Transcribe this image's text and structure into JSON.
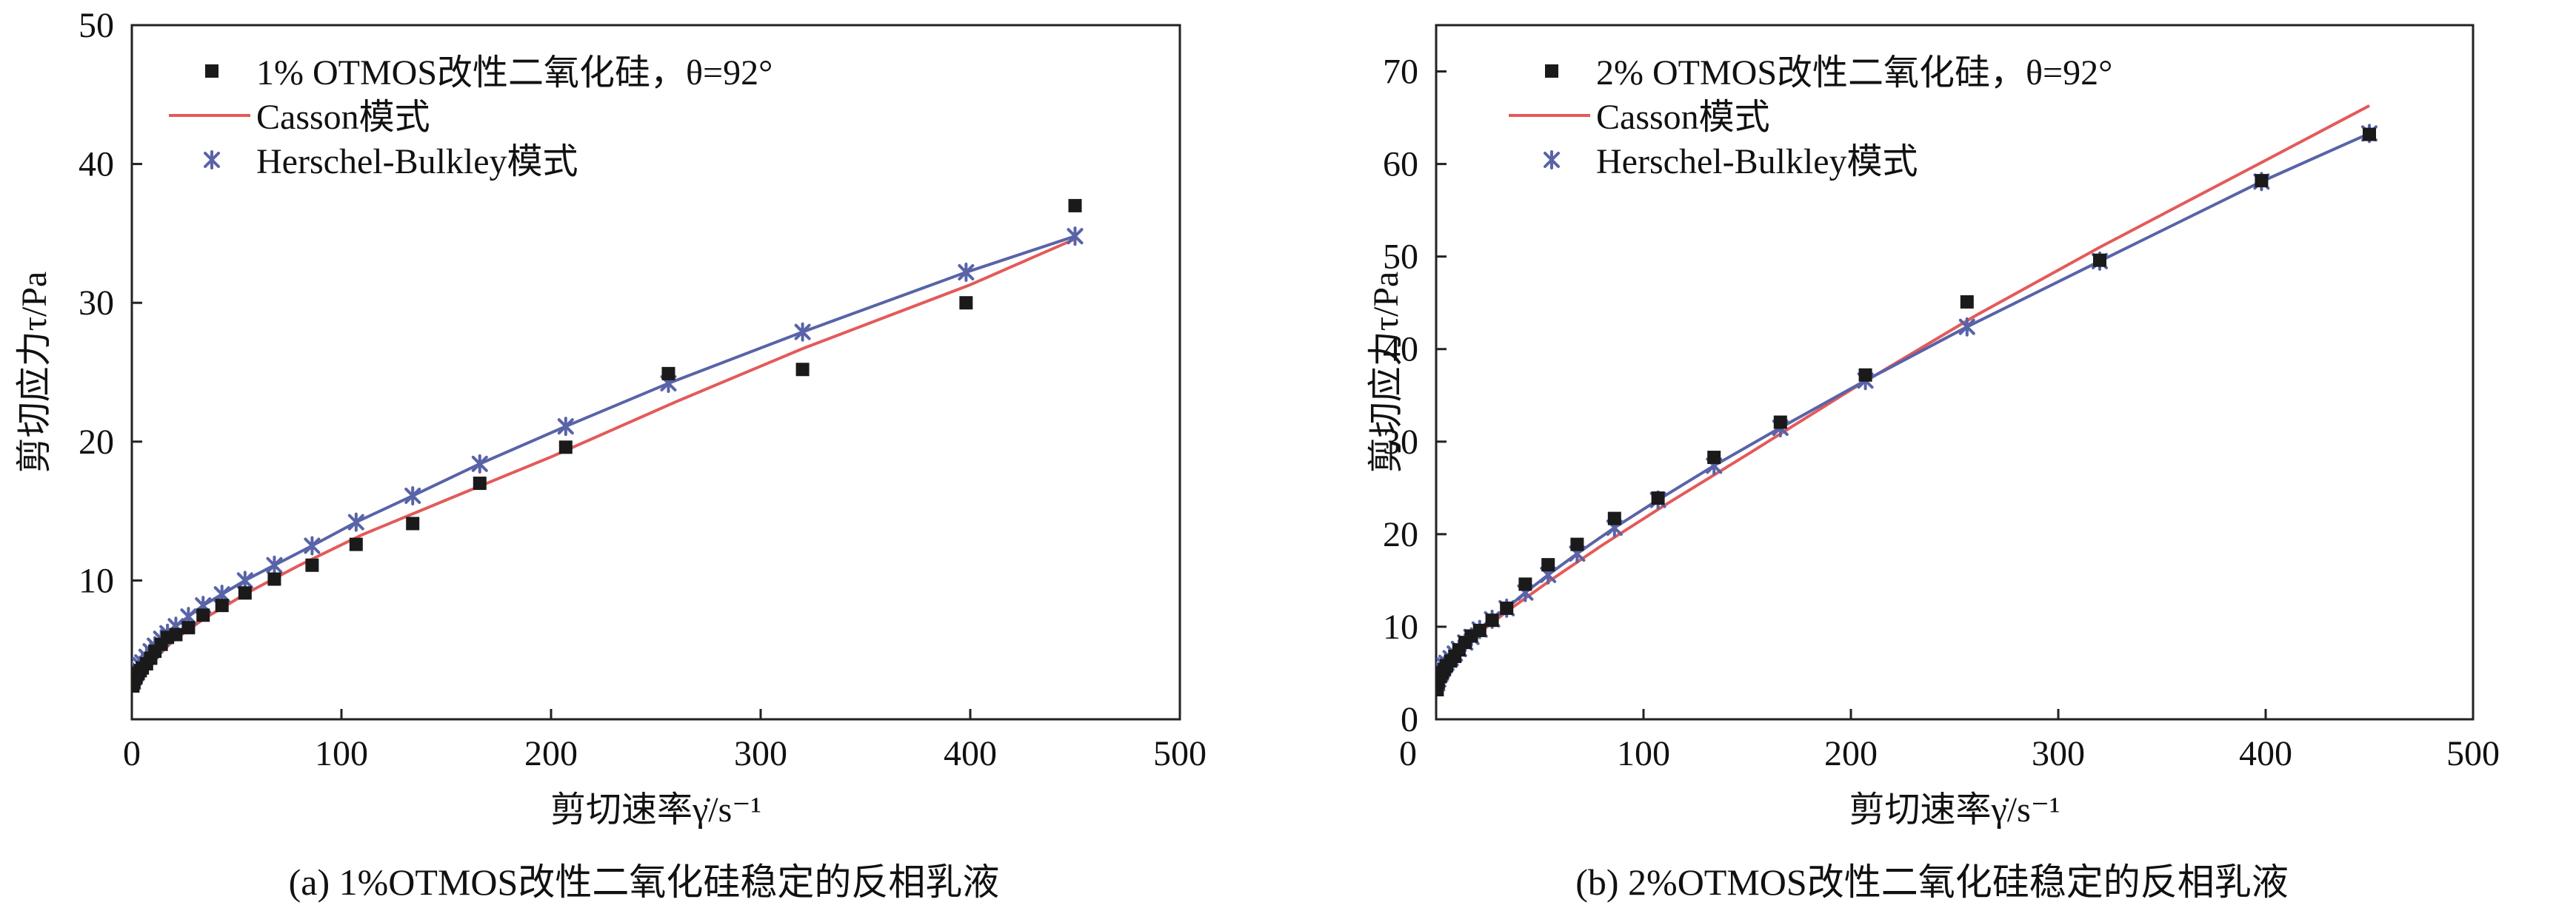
{
  "chart_data": [
    {
      "type": "scatter",
      "caption": "(a) 1%OTMOS改性二氧化硅稳定的反相乳液",
      "xlabel": "剪切速率γ̇/s⁻¹",
      "ylabel": "剪切应力τ/Pa",
      "xlim": [
        0,
        500
      ],
      "ylim": [
        0,
        50
      ],
      "xticks": [
        0,
        100,
        200,
        300,
        400,
        500
      ],
      "yticks": [
        10,
        20,
        30,
        40,
        50
      ],
      "xtick_labels": [
        "0",
        "100",
        "200",
        "300",
        "400",
        "500"
      ],
      "ytick_labels": [
        "10",
        "20",
        "30",
        "40",
        "50"
      ],
      "legend_position": "top-left",
      "legend": {
        "data": "1% OTMOS改性二氧化硅，θ=92°",
        "casson": "Casson模式",
        "hb": "Herschel-Bulkley模式"
      },
      "colors": {
        "data": "#1a1a1a",
        "casson": "#e45a5a",
        "hb": "#5863a8"
      },
      "series": [
        {
          "name": "1% OTMOS改性二氧化硅，θ=92°",
          "kind": "markers",
          "x": [
            0.5,
            1,
            2,
            3,
            4,
            5,
            7,
            9,
            11,
            14,
            17,
            21,
            27,
            34,
            43,
            54,
            68,
            86,
            107,
            134,
            166,
            207,
            256,
            320,
            398,
            450
          ],
          "y": [
            2.4,
            2.7,
            3.0,
            3.3,
            3.5,
            3.7,
            4.0,
            4.4,
            4.9,
            5.4,
            5.9,
            6.1,
            6.6,
            7.5,
            8.2,
            9.1,
            10.1,
            11.1,
            12.6,
            14.1,
            17.0,
            19.6,
            24.9,
            25.2,
            30.0,
            37.0
          ]
        },
        {
          "name": "Casson模式",
          "kind": "line",
          "x": [
            0,
            2,
            5,
            10,
            20,
            35,
            55,
            80,
            110,
            150,
            200,
            260,
            320,
            400,
            450
          ],
          "y": [
            2.2,
            2.7,
            3.3,
            4.2,
            5.7,
            7.3,
            9.1,
            11.1,
            13.3,
            15.8,
            18.9,
            22.9,
            26.7,
            31.3,
            34.6
          ]
        },
        {
          "name": "Herschel-Bulkley模式",
          "kind": "line-markers",
          "x": [
            0.5,
            1,
            2,
            3,
            4,
            5,
            7,
            9,
            11,
            14,
            17,
            21,
            27,
            34,
            43,
            54,
            68,
            86,
            107,
            134,
            166,
            207,
            256,
            320,
            398,
            450
          ],
          "y": [
            2.7,
            3.0,
            3.3,
            3.6,
            3.9,
            4.1,
            4.5,
            4.9,
            5.3,
            5.8,
            6.2,
            6.7,
            7.4,
            8.2,
            9.0,
            10.0,
            11.1,
            12.5,
            14.2,
            16.1,
            18.4,
            21.1,
            24.2,
            27.9,
            32.2,
            34.8
          ]
        }
      ]
    },
    {
      "type": "scatter",
      "caption": "(b) 2%OTMOS改性二氧化硅稳定的反相乳液",
      "xlabel": "剪切速率γ̇/s⁻¹",
      "ylabel": "剪切应力τ/Pa",
      "xlim": [
        0,
        500
      ],
      "ylim": [
        0,
        75
      ],
      "xticks": [
        0,
        100,
        200,
        300,
        400,
        500
      ],
      "yticks": [
        0,
        10,
        20,
        30,
        40,
        50,
        60,
        70
      ],
      "xtick_labels": [
        "0",
        "100",
        "200",
        "300",
        "400",
        "500"
      ],
      "ytick_labels": [
        "0",
        "10",
        "20",
        "30",
        "40",
        "50",
        "60",
        "70"
      ],
      "legend_position": "top-left",
      "legend": {
        "data": "2% OTMOS改性二氧化硅，θ=92°",
        "casson": "Casson模式",
        "hb": "Herschel-Bulkley模式"
      },
      "colors": {
        "data": "#1a1a1a",
        "casson": "#e45a5a",
        "hb": "#5863a8"
      },
      "series": [
        {
          "name": "2% OTMOS改性二氧化硅，θ=92°",
          "kind": "markers",
          "x": [
            0.5,
            1,
            2,
            3,
            4,
            5,
            7,
            9,
            11,
            14,
            17,
            21,
            27,
            34,
            43,
            54,
            68,
            86,
            107,
            134,
            166,
            207,
            256,
            320,
            398,
            450
          ],
          "y": [
            3.2,
            4.0,
            4.6,
            5.0,
            5.4,
            5.8,
            6.3,
            6.8,
            7.5,
            8.3,
            9.0,
            9.6,
            10.7,
            12.0,
            14.6,
            16.7,
            18.9,
            21.7,
            23.9,
            28.3,
            32.1,
            37.2,
            45.1,
            49.6,
            58.2,
            63.2
          ]
        },
        {
          "name": "Casson模式",
          "kind": "line",
          "x": [
            0,
            2,
            5,
            10,
            20,
            35,
            55,
            80,
            110,
            150,
            200,
            260,
            320,
            400,
            450
          ],
          "y": [
            3.3,
            4.5,
            5.6,
            7.1,
            9.2,
            11.8,
            15.0,
            18.8,
            23.1,
            28.6,
            35.6,
            43.6,
            51.0,
            60.4,
            66.3
          ]
        },
        {
          "name": "Herschel-Bulkley模式",
          "kind": "line-markers",
          "x": [
            0.5,
            1,
            2,
            3,
            4,
            5,
            7,
            9,
            11,
            14,
            17,
            21,
            27,
            34,
            43,
            54,
            68,
            86,
            107,
            134,
            166,
            207,
            256,
            320,
            398,
            450
          ],
          "y": [
            3.9,
            4.3,
            4.9,
            5.4,
            5.8,
            6.1,
            6.6,
            7.1,
            7.6,
            8.3,
            8.9,
            9.7,
            10.8,
            12.0,
            13.7,
            15.6,
            17.9,
            20.7,
            23.7,
            27.4,
            31.5,
            36.6,
            42.4,
            49.5,
            58.1,
            63.3
          ]
        }
      ]
    }
  ]
}
